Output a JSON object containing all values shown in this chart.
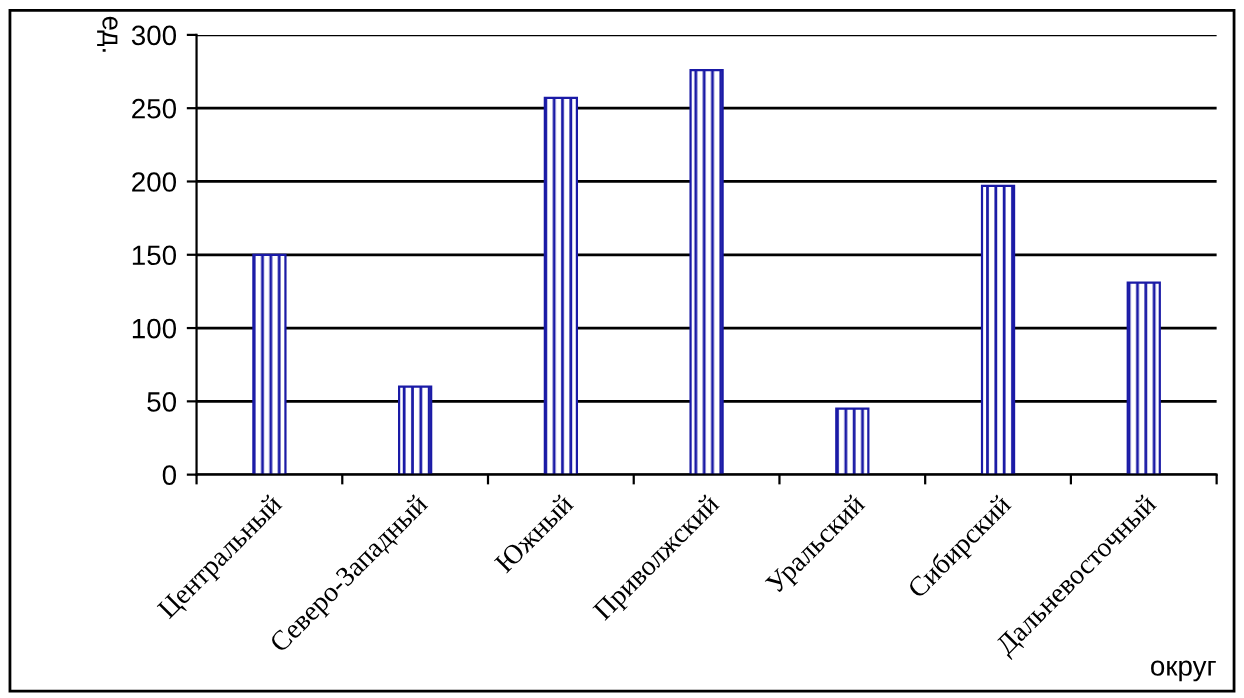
{
  "chart_data": {
    "type": "bar",
    "xlabel": "округ",
    "ylabel": "ед.",
    "categories": [
      "Центральный",
      "Северо-Западный",
      "Южный",
      "Приволжский",
      "Уральский",
      "Сибирский",
      "Дальневосточный"
    ],
    "values": [
      150,
      60,
      257,
      276,
      45,
      197,
      131
    ],
    "color": "#1a1aa6",
    "ylim": [
      0,
      300
    ],
    "yticks": [
      0,
      50,
      100,
      150,
      200,
      250,
      300
    ],
    "grid": "y"
  }
}
